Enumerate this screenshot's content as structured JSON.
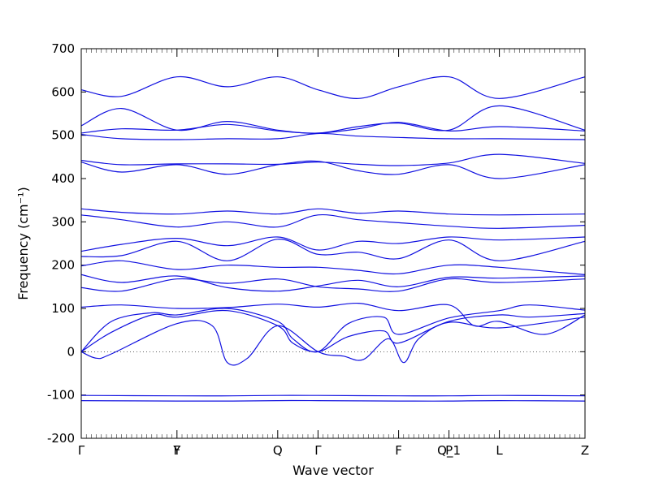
{
  "chart_data": {
    "type": "line",
    "xlabel": "Wave vector",
    "ylabel": "Frequency (cm⁻¹)",
    "ylim": [
      -200,
      700
    ],
    "yticks": [
      -200,
      -100,
      0,
      100,
      200,
      300,
      400,
      500,
      600,
      700
    ],
    "xlim": [
      0,
      10
    ],
    "grid": false,
    "zero_line": true,
    "band_color": "#1010e0",
    "high_symmetry_points": [
      {
        "label": "Γ",
        "x": 0
      },
      {
        "label": "Y",
        "x": 1.9
      },
      {
        "label": "F",
        "x": 1.9
      },
      {
        "label": "Q",
        "x": 3.9
      },
      {
        "label": "Γ",
        "x": 4.7
      },
      {
        "label": "F",
        "x": 6.3
      },
      {
        "label": "P",
        "x": 7.3
      },
      {
        "label": "Q_1",
        "x": 7.3
      },
      {
        "label": "L",
        "x": 8.3
      },
      {
        "label": "Z",
        "x": 10
      }
    ],
    "series": [
      {
        "x": [
          0,
          1.9,
          3.0,
          3.9,
          4.7,
          6.3,
          7.3,
          8.3,
          10
        ],
        "y": [
          -113,
          -114,
          -114,
          -113,
          -113,
          -114,
          -114,
          -113,
          -114
        ]
      },
      {
        "x": [
          0,
          1.9,
          3.0,
          3.9,
          4.7,
          6.3,
          7.3,
          8.3,
          10
        ],
        "y": [
          -101,
          -102,
          -102,
          -101,
          -101,
          -102,
          -102,
          -101,
          -102
        ]
      },
      {
        "x": [
          0,
          0.6,
          1.4,
          1.9,
          2.9,
          3.9,
          4.2,
          4.7,
          5.3,
          6.0,
          6.3,
          7.3,
          8.3,
          8.9,
          10
        ],
        "y": [
          0,
          45,
          85,
          80,
          95,
          60,
          20,
          0,
          35,
          48,
          20,
          70,
          85,
          80,
          88
        ]
      },
      {
        "x": [
          0,
          0.6,
          1.4,
          1.9,
          2.9,
          3.9,
          4.2,
          4.7,
          5.3,
          6.0,
          6.3,
          7.3,
          8.3,
          8.9,
          10
        ],
        "y": [
          0,
          70,
          90,
          85,
          100,
          70,
          30,
          0,
          65,
          80,
          40,
          78,
          95,
          108,
          96
        ]
      },
      {
        "x": [
          0,
          0.3,
          0.6,
          1.9,
          2.6,
          2.9,
          3.3,
          3.9,
          4.7,
          5.2,
          5.6,
          6.1,
          6.4,
          6.7,
          7.3,
          8.3,
          10
        ],
        "y": [
          0,
          -15,
          -5,
          65,
          60,
          -25,
          -15,
          60,
          0,
          -10,
          -18,
          30,
          -25,
          30,
          68,
          55,
          80
        ]
      },
      {
        "x": [
          0,
          0.8,
          1.9,
          2.9,
          3.9,
          4.7,
          5.5,
          6.3,
          7.3,
          7.8,
          8.3,
          9.2,
          10
        ],
        "y": [
          103,
          108,
          100,
          102,
          110,
          103,
          112,
          95,
          108,
          60,
          70,
          40,
          85
        ]
      },
      {
        "x": [
          0,
          0.8,
          1.9,
          2.9,
          3.9,
          4.7,
          5.5,
          6.3,
          7.3,
          8.3,
          10
        ],
        "y": [
          148,
          140,
          168,
          158,
          168,
          150,
          145,
          140,
          168,
          160,
          168
        ]
      },
      {
        "x": [
          0,
          0.8,
          1.9,
          2.9,
          3.9,
          4.7,
          5.5,
          6.3,
          7.3,
          8.3,
          10
        ],
        "y": [
          178,
          160,
          175,
          148,
          140,
          152,
          165,
          150,
          172,
          170,
          175
        ]
      },
      {
        "x": [
          0,
          0.8,
          1.9,
          2.9,
          3.9,
          4.7,
          5.5,
          6.3,
          7.3,
          8.3,
          10
        ],
        "y": [
          198,
          210,
          190,
          200,
          195,
          195,
          188,
          180,
          200,
          195,
          178
        ]
      },
      {
        "x": [
          0,
          0.8,
          1.9,
          2.9,
          3.9,
          4.7,
          5.5,
          6.3,
          7.3,
          8.3,
          10
        ],
        "y": [
          220,
          222,
          255,
          210,
          260,
          225,
          230,
          215,
          258,
          210,
          255
        ]
      },
      {
        "x": [
          0,
          0.8,
          1.9,
          2.9,
          3.9,
          4.7,
          5.5,
          6.3,
          7.3,
          8.3,
          10
        ],
        "y": [
          232,
          248,
          262,
          245,
          265,
          235,
          255,
          250,
          265,
          258,
          265
        ]
      },
      {
        "x": [
          0,
          0.8,
          1.9,
          2.9,
          3.9,
          4.7,
          5.5,
          6.3,
          7.3,
          8.3,
          10
        ],
        "y": [
          316,
          305,
          288,
          300,
          288,
          316,
          305,
          298,
          290,
          285,
          292
        ]
      },
      {
        "x": [
          0,
          0.8,
          1.9,
          2.9,
          3.9,
          4.7,
          5.5,
          6.3,
          7.3,
          8.3,
          10
        ],
        "y": [
          330,
          322,
          318,
          325,
          318,
          330,
          320,
          325,
          318,
          316,
          318
        ]
      },
      {
        "x": [
          0,
          0.8,
          1.9,
          2.9,
          3.9,
          4.7,
          5.5,
          6.3,
          7.3,
          8.3,
          10
        ],
        "y": [
          438,
          415,
          432,
          410,
          432,
          440,
          418,
          410,
          432,
          400,
          432
        ]
      },
      {
        "x": [
          0,
          0.8,
          1.9,
          2.9,
          3.9,
          4.7,
          5.5,
          6.3,
          7.3,
          8.3,
          10
        ],
        "y": [
          442,
          432,
          434,
          434,
          433,
          438,
          433,
          430,
          436,
          456,
          435
        ]
      },
      {
        "x": [
          0,
          0.8,
          1.9,
          2.9,
          3.9,
          4.7,
          5.5,
          6.3,
          7.3,
          8.3,
          10
        ],
        "y": [
          502,
          492,
          490,
          492,
          492,
          504,
          498,
          495,
          492,
          492,
          490
        ]
      },
      {
        "x": [
          0,
          0.8,
          1.9,
          2.9,
          3.9,
          4.7,
          5.5,
          6.3,
          7.3,
          8.3,
          10
        ],
        "y": [
          505,
          515,
          512,
          525,
          510,
          505,
          515,
          530,
          510,
          520,
          510
        ]
      },
      {
        "x": [
          0,
          0.8,
          1.9,
          2.9,
          3.9,
          4.7,
          5.5,
          6.3,
          7.3,
          8.3,
          10
        ],
        "y": [
          522,
          562,
          512,
          532,
          512,
          505,
          520,
          528,
          512,
          568,
          512
        ]
      },
      {
        "x": [
          0,
          0.8,
          1.9,
          2.9,
          3.9,
          4.7,
          5.5,
          6.3,
          7.3,
          8.3,
          10
        ],
        "y": [
          605,
          590,
          635,
          612,
          635,
          605,
          585,
          612,
          635,
          585,
          635
        ]
      }
    ]
  }
}
